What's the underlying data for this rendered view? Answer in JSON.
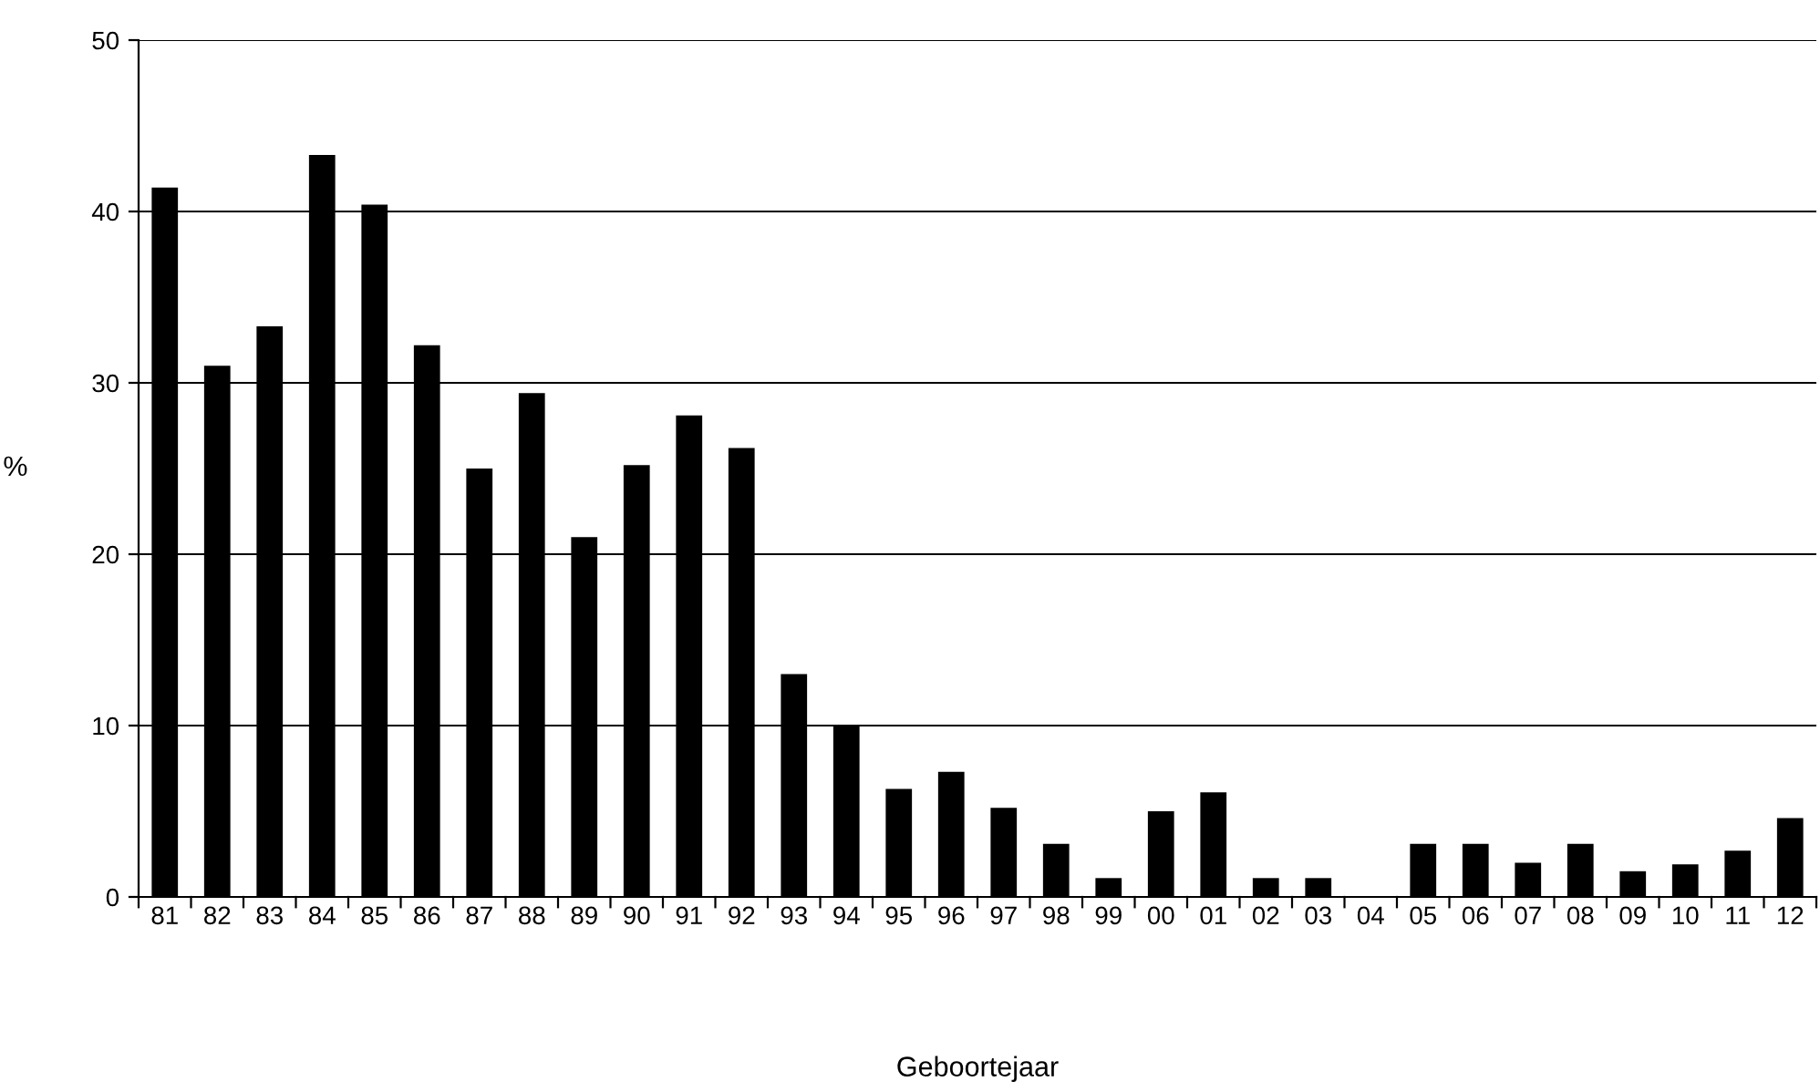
{
  "chart_data": {
    "type": "bar",
    "xlabel": "Geboortejaar",
    "ylabel": "%",
    "categories": [
      "81",
      "82",
      "83",
      "84",
      "85",
      "86",
      "87",
      "88",
      "89",
      "90",
      "91",
      "92",
      "93",
      "94",
      "95",
      "96",
      "97",
      "98",
      "99",
      "00",
      "01",
      "02",
      "03",
      "04",
      "05",
      "06",
      "07",
      "08",
      "09",
      "10",
      "11",
      "12"
    ],
    "values": [
      41.4,
      31.0,
      33.3,
      43.3,
      40.4,
      32.2,
      25.0,
      29.4,
      21.0,
      25.2,
      28.1,
      26.2,
      13.0,
      10.0,
      6.3,
      7.3,
      5.2,
      3.1,
      1.1,
      5.0,
      6.1,
      1.1,
      1.1,
      0,
      3.1,
      3.1,
      2.0,
      3.1,
      1.5,
      1.9,
      2.7,
      4.6
    ],
    "color": "#000000",
    "ylim": [
      0,
      50
    ],
    "yticks": [
      0,
      10,
      20,
      30,
      40,
      50
    ],
    "grid": "y",
    "legend": false
  }
}
